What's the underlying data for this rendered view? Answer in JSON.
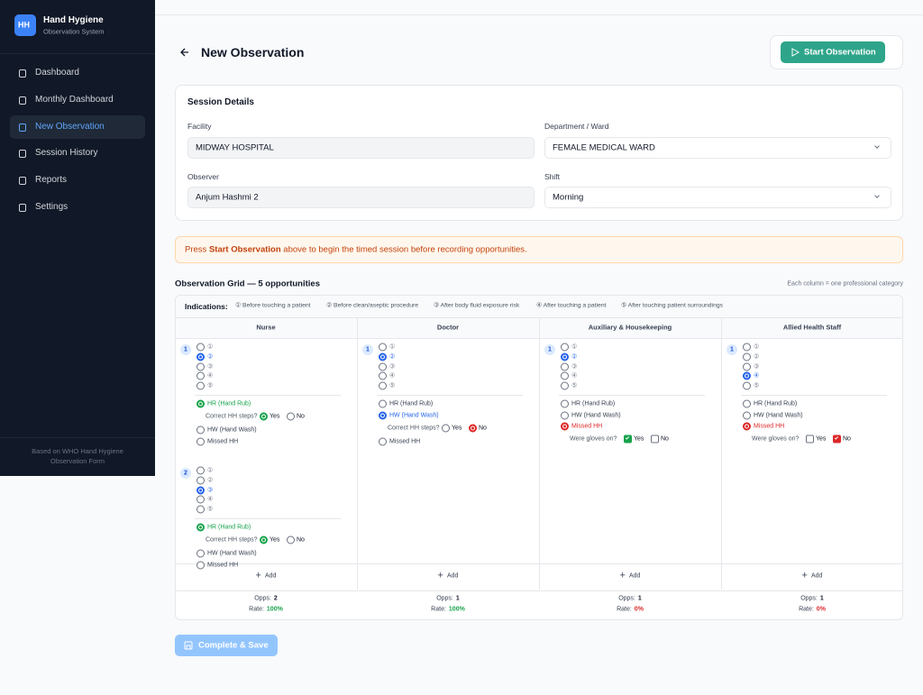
{
  "brand": {
    "logo": "HH",
    "title": "Hand Hygiene",
    "subtitle": "Observation System"
  },
  "nav": {
    "items": [
      "Dashboard",
      "Monthly Dashboard",
      "New Observation",
      "Session History",
      "Reports",
      "Settings"
    ],
    "active": 2
  },
  "sidebar_footer": "Based on WHO Hand Hygiene Observation Form",
  "header": {
    "title": "New Observation",
    "button": "Start Observation"
  },
  "session": {
    "title": "Session Details",
    "fields": [
      {
        "label": "Facility",
        "value": "MIDWAY HOSPITAL",
        "select": false
      },
      {
        "label": "Department / Ward",
        "value": "FEMALE MEDICAL WARD",
        "select": true
      },
      {
        "label": "Observer",
        "value": "Anjum Hashmi 2",
        "select": false
      },
      {
        "label": "Shift",
        "value": "Morning",
        "select": true
      }
    ]
  },
  "notice": {
    "before": "Press ",
    "bold": "Start Observation",
    "after": " above to begin the timed session before recording opportunities."
  },
  "grid": {
    "title": "Observation Grid — 5 opportunities",
    "note": "Each column = one professional category",
    "indications_label": "Indications:",
    "indications": [
      "① Before touching a patient",
      "② Before clean/aseptic procedure",
      "③ After body fluid exposure risk",
      "④ After touching a patient",
      "⑤ After touching patient surroundings"
    ],
    "indication_marks": [
      "①",
      "②",
      "③",
      "④",
      "⑤"
    ],
    "actions": [
      "HR (Hand Rub)",
      "HW (Hand Wash)",
      "Missed HH"
    ],
    "action_colors": [
      "#16a34a",
      "#2563eb",
      "#dc2626"
    ],
    "questions": {
      "compliance": "Correct HH steps?",
      "gloves": "Were gloves on?"
    },
    "answers": [
      "Yes",
      "No"
    ],
    "add": "Add",
    "opps_label": "Opps:",
    "rate_label": "Rate:",
    "columns": [
      {
        "name": "Nurse",
        "opps": 2,
        "rate": "100%",
        "rate_color": "#16a34a",
        "opportunities": [
          {
            "number": 1,
            "indication": 2,
            "action": 0,
            "question": "compliance",
            "answer": 0
          },
          {
            "number": 2,
            "indication": 3,
            "action": 0,
            "question": "compliance",
            "answer": 0
          }
        ]
      },
      {
        "name": "Doctor",
        "opps": 1,
        "rate": "100%",
        "rate_color": "#16a34a",
        "opportunities": [
          {
            "number": 1,
            "indication": 2,
            "action": 1,
            "question": "compliance",
            "answer": 1
          }
        ]
      },
      {
        "name": "Auxiliary & Housekeeping",
        "opps": 1,
        "rate": "0%",
        "rate_color": "#dc2626",
        "opportunities": [
          {
            "number": 1,
            "indication": 2,
            "action": 2,
            "question": "gloves",
            "answer": 0
          }
        ]
      },
      {
        "name": "Allied Health Staff",
        "opps": 1,
        "rate": "0%",
        "rate_color": "#dc2626",
        "opportunities": [
          {
            "number": 1,
            "indication": 4,
            "action": 2,
            "question": "gloves",
            "answer": 1
          }
        ]
      }
    ]
  },
  "save_button": "Complete & Save"
}
